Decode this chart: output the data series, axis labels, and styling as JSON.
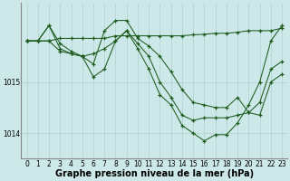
{
  "background_color": "#cce8e8",
  "grid_color": "#aacaca",
  "line_color": "#1e5c1e",
  "marker_color": "#1e5c1e",
  "xlabel": "Graphe pression niveau de la mer (hPa)",
  "xlabel_fontsize": 7.0,
  "tick_fontsize": 5.5,
  "ylim": [
    1013.5,
    1016.55
  ],
  "xlim": [
    -0.5,
    23.5
  ],
  "yticks": [
    1014,
    1015
  ],
  "xticks": [
    0,
    1,
    2,
    3,
    4,
    5,
    6,
    7,
    8,
    9,
    10,
    11,
    12,
    13,
    14,
    15,
    16,
    17,
    18,
    19,
    20,
    21,
    22,
    23
  ],
  "series": [
    {
      "x": [
        0,
        1,
        2,
        3,
        4,
        5,
        6,
        7,
        8,
        9,
        10,
        11,
        12,
        13,
        14,
        15,
        16,
        17,
        18,
        19,
        20,
        21,
        22,
        23
      ],
      "y": [
        1015.8,
        1015.8,
        1015.8,
        1015.85,
        1015.85,
        1015.85,
        1015.85,
        1015.85,
        1015.9,
        1015.9,
        1015.9,
        1015.9,
        1015.9,
        1015.9,
        1015.9,
        1015.92,
        1015.93,
        1015.95,
        1015.95,
        1015.97,
        1016.0,
        1016.0,
        1016.0,
        1016.05
      ]
    },
    {
      "x": [
        0,
        1,
        2,
        3,
        4,
        5,
        6,
        7,
        8,
        9,
        10,
        11,
        12,
        13,
        14,
        15,
        16,
        17,
        18,
        19,
        20,
        21,
        22,
        23
      ],
      "y": [
        1015.8,
        1015.8,
        1016.1,
        1015.75,
        1015.6,
        1015.5,
        1015.35,
        1016.0,
        1016.2,
        1016.2,
        1015.85,
        1015.7,
        1015.5,
        1015.2,
        1014.85,
        1014.6,
        1014.55,
        1014.5,
        1014.5,
        1014.7,
        1014.4,
        1014.6,
        1015.25,
        1015.4
      ]
    },
    {
      "x": [
        0,
        1,
        2,
        3,
        4,
        5,
        6,
        7,
        8,
        9,
        10,
        11,
        12,
        13,
        14,
        15,
        16,
        17,
        18,
        19,
        20,
        21,
        22,
        23
      ],
      "y": [
        1015.8,
        1015.8,
        1015.8,
        1015.6,
        1015.55,
        1015.5,
        1015.55,
        1015.65,
        1015.8,
        1016.0,
        1015.75,
        1015.5,
        1015.0,
        1014.7,
        1014.35,
        1014.25,
        1014.3,
        1014.3,
        1014.3,
        1014.35,
        1014.4,
        1014.35,
        1015.0,
        1015.15
      ]
    },
    {
      "x": [
        0,
        1,
        2,
        3,
        4,
        5,
        6,
        7,
        8,
        9,
        10,
        11,
        12,
        13,
        14,
        15,
        16,
        17,
        18,
        19,
        20,
        21,
        22,
        23
      ],
      "y": [
        1015.8,
        1015.8,
        1016.1,
        1015.65,
        1015.55,
        1015.5,
        1015.1,
        1015.25,
        1015.8,
        1016.0,
        1015.65,
        1015.25,
        1014.75,
        1014.55,
        1014.15,
        1014.0,
        1013.85,
        1013.97,
        1013.97,
        1014.2,
        1014.55,
        1015.0,
        1015.8,
        1016.1
      ]
    }
  ]
}
